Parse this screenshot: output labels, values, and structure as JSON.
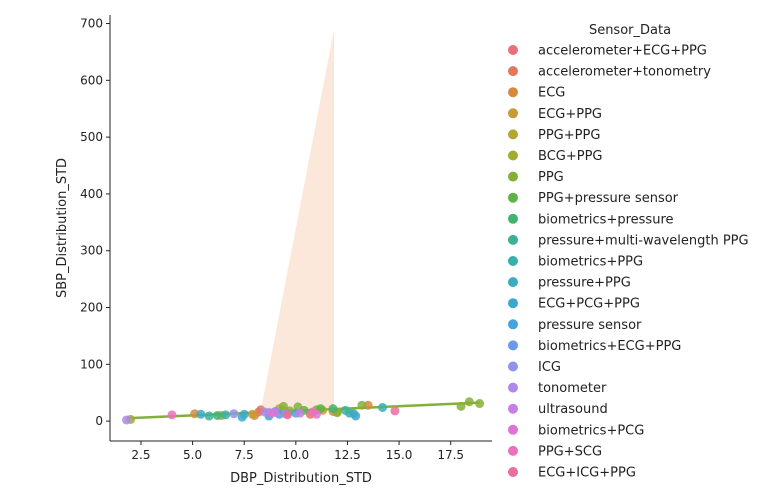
{
  "chart_data": {
    "type": "scatter",
    "xlabel": "DBP_Distribution_STD",
    "ylabel": "SBP_Distribution_STD",
    "xlim": [
      1.0,
      19.5
    ],
    "ylim": [
      -35,
      715
    ],
    "xticks": [
      2.5,
      5.0,
      7.5,
      10.0,
      12.5,
      15.0,
      17.5
    ],
    "xtick_labels": [
      "2.5",
      "5.0",
      "7.5",
      "10.0",
      "12.5",
      "15.0",
      "17.5"
    ],
    "yticks": [
      0,
      100,
      200,
      300,
      400,
      500,
      600,
      700
    ],
    "ytick_labels": [
      "0",
      "100",
      "200",
      "300",
      "400",
      "500",
      "600",
      "700"
    ],
    "legend": {
      "title": "Sensor_Data",
      "position": "right"
    },
    "series": [
      {
        "name": "accelerometer+ECG+PPG",
        "color": "#e8707a",
        "points": [
          [
            8.2,
            16
          ],
          [
            9.6,
            14
          ]
        ]
      },
      {
        "name": "accelerometer+tonometry",
        "color": "#e4775a",
        "points": [
          [
            8.3,
            20
          ],
          [
            10.7,
            12
          ]
        ]
      },
      {
        "name": "ECG",
        "color": "#d68a3e",
        "points": [
          [
            5.1,
            13
          ],
          [
            8.0,
            10
          ],
          [
            13.5,
            28
          ],
          [
            11.8,
            17
          ]
        ]
      },
      {
        "name": "ECG+PPG",
        "color": "#c99a36",
        "points": [
          [
            7.9,
            12
          ],
          [
            9.4,
            18
          ],
          [
            11.3,
            19
          ]
        ]
      },
      {
        "name": "PPG+PPG",
        "color": "#b5a533",
        "points": [
          [
            9.2,
            22
          ],
          [
            12.0,
            16
          ]
        ]
      },
      {
        "name": "BCG+PPG",
        "color": "#a0ad32",
        "points": [
          [
            2.0,
            3
          ],
          [
            6.4,
            10
          ]
        ]
      },
      {
        "name": "PPG",
        "color": "#85b038",
        "points": [
          [
            9.4,
            26
          ],
          [
            10.1,
            25
          ],
          [
            13.2,
            28
          ],
          [
            18.0,
            26
          ],
          [
            18.4,
            34
          ],
          [
            18.9,
            31
          ],
          [
            11.0,
            20
          ],
          [
            12.0,
            15
          ],
          [
            9.7,
            18
          ]
        ]
      },
      {
        "name": "PPG+pressure sensor",
        "color": "#5db345",
        "points": [
          [
            11.2,
            22
          ],
          [
            10.4,
            19
          ]
        ]
      },
      {
        "name": "biometrics+pressure",
        "color": "#43b371",
        "points": [
          [
            6.2,
            10
          ],
          [
            11.8,
            22
          ]
        ]
      },
      {
        "name": "pressure+multi-wavelength PPG",
        "color": "#3bb295",
        "points": [
          [
            5.8,
            9
          ],
          [
            12.4,
            19
          ]
        ]
      },
      {
        "name": "biometrics+PPG",
        "color": "#39afab",
        "points": [
          [
            6.6,
            11
          ],
          [
            14.2,
            24
          ],
          [
            12.6,
            14
          ]
        ]
      },
      {
        "name": "pressure+PPG",
        "color": "#3aacbd",
        "points": [
          [
            5.4,
            12
          ],
          [
            7.5,
            12
          ],
          [
            12.8,
            13
          ]
        ]
      },
      {
        "name": "ECG+PCG+PPG",
        "color": "#3da8cd",
        "points": [
          [
            7.4,
            7
          ],
          [
            8.7,
            9
          ],
          [
            12.9,
            9
          ]
        ]
      },
      {
        "name": "pressure sensor",
        "color": "#48a2dc",
        "points": [
          [
            10.0,
            14
          ],
          [
            9.2,
            12
          ]
        ]
      },
      {
        "name": "biometrics+ECG+PPG",
        "color": "#6a9ae6",
        "points": [
          [
            8.7,
            15
          ],
          [
            9.0,
            17
          ]
        ]
      },
      {
        "name": "ICG",
        "color": "#8f94e8",
        "points": [
          [
            7.0,
            13
          ],
          [
            9.5,
            13
          ]
        ]
      },
      {
        "name": "tonometer",
        "color": "#ac8ae6",
        "points": [
          [
            1.8,
            2
          ],
          [
            8.5,
            16
          ]
        ]
      },
      {
        "name": "ultrasound",
        "color": "#c77fe2",
        "points": [
          [
            9.0,
            15
          ],
          [
            10.2,
            14
          ]
        ]
      },
      {
        "name": "biometrics+PCG",
        "color": "#de74d6",
        "points": [
          [
            8.8,
            14
          ],
          [
            11.0,
            12
          ]
        ]
      },
      {
        "name": "PPG+SCG",
        "color": "#e872bd",
        "points": [
          [
            4.0,
            11
          ],
          [
            10.8,
            16
          ]
        ]
      },
      {
        "name": "ECG+ICG+PPG",
        "color": "#ea6f9f",
        "points": [
          [
            14.8,
            18
          ],
          [
            9.6,
            11
          ]
        ]
      }
    ],
    "regression_line": {
      "color": "#85b038",
      "x": [
        1.8,
        18.9
      ],
      "y": [
        5.0,
        32.5
      ]
    },
    "confidence_band": {
      "color": "#fbe4d3",
      "polygon": [
        [
          8.3,
          18
        ],
        [
          11.85,
          690
        ],
        [
          11.85,
          22
        ]
      ]
    }
  }
}
